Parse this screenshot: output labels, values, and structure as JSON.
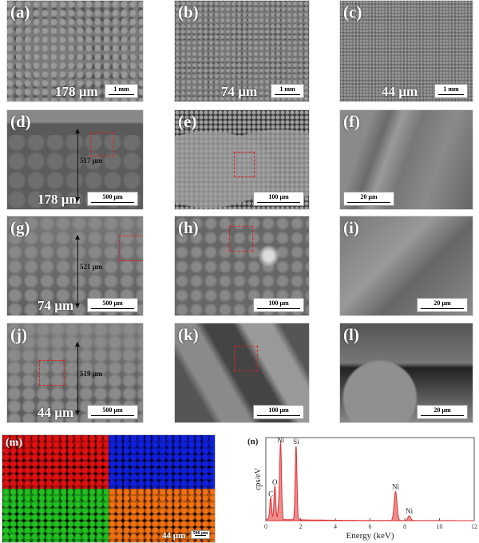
{
  "panels": [
    {
      "label": "(a)",
      "size": "178 µm",
      "scale": "1 mm"
    },
    {
      "label": "(b)",
      "size": "74 µm",
      "scale": "1 mm"
    },
    {
      "label": "(c)",
      "size": "44 µm",
      "scale": "1 mm"
    },
    {
      "label": "(d)",
      "size": "178 µm",
      "scale": "500 µm",
      "thickness": "517 µm"
    },
    {
      "label": "(e)",
      "scale": "100 µm"
    },
    {
      "label": "(f)",
      "scale": "20 µm"
    },
    {
      "label": "(g)",
      "size": "74 µm",
      "scale": "500 µm",
      "thickness": "521 µm"
    },
    {
      "label": "(h)",
      "scale": "100 µm"
    },
    {
      "label": "(i)",
      "scale": "20 µm"
    },
    {
      "label": "(j)",
      "size": "44 µm",
      "scale": "500 µm",
      "thickness": "519 µm"
    },
    {
      "label": "(k)",
      "scale": "100 µm"
    },
    {
      "label": "(l)",
      "scale": "20 µm"
    }
  ],
  "mapping": {
    "label": "(m)",
    "elements": [
      {
        "name": "C",
        "color": "#e01010"
      },
      {
        "name": "Si",
        "color": "#1020e0"
      },
      {
        "name": "O",
        "color": "#20c020"
      },
      {
        "name": "Ni",
        "color": "#f07010"
      }
    ],
    "size": "44 µm",
    "scale": "500 µm"
  },
  "chart_data": {
    "type": "area",
    "panel_label": "(n)",
    "xlabel": "Energy (keV)",
    "ylabel": "cps/eV",
    "xlim": [
      0,
      12
    ],
    "xticks": [
      0,
      2,
      4,
      6,
      8,
      10,
      12
    ],
    "color": "#e03030",
    "peaks": [
      {
        "label": "C",
        "x": 0.28,
        "y": 0.28
      },
      {
        "label": "O",
        "x": 0.52,
        "y": 0.43
      },
      {
        "label": "",
        "x": 0.75,
        "y": 0.17
      },
      {
        "label": "Ni",
        "x": 0.85,
        "y": 0.97
      },
      {
        "label": "Si",
        "x": 1.74,
        "y": 0.95
      },
      {
        "label": "Ni",
        "x": 7.47,
        "y": 0.37
      },
      {
        "label": "Ni",
        "x": 8.26,
        "y": 0.06
      }
    ]
  }
}
